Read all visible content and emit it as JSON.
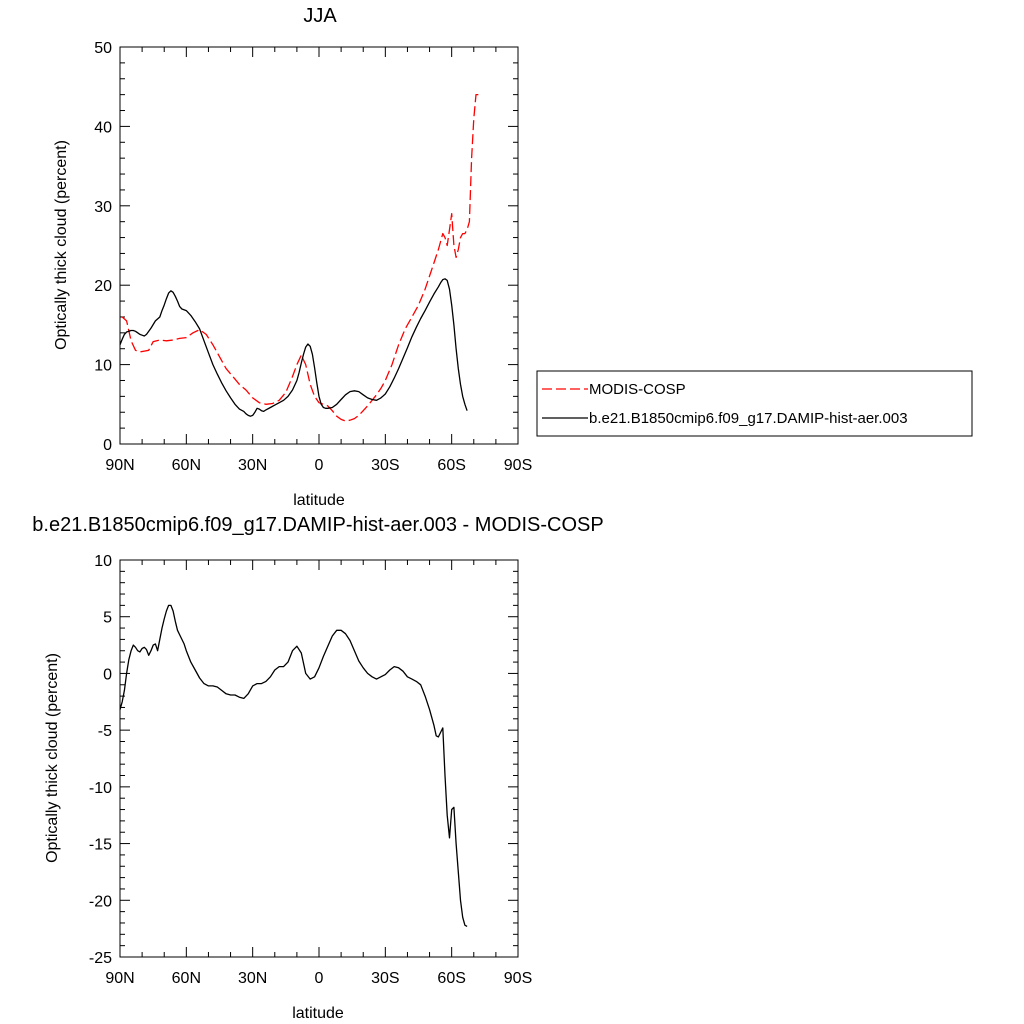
{
  "chart_data": [
    {
      "type": "line",
      "title": "JJA",
      "xlabel": "latitude",
      "ylabel": "Optically thick cloud (percent)",
      "xlim": [
        -90,
        90
      ],
      "ylim": [
        0,
        50
      ],
      "x_ticks": [
        -90,
        -60,
        -30,
        0,
        30,
        60,
        90
      ],
      "x_tick_labels": [
        "90N",
        "60N",
        "30N",
        "0",
        "30S",
        "60S",
        "90S"
      ],
      "y_ticks": [
        0,
        10,
        20,
        30,
        40,
        50
      ],
      "y_tick_labels": [
        "0",
        "10",
        "20",
        "30",
        "40",
        "50"
      ],
      "grid": false,
      "legend_position": "right",
      "series": [
        {
          "name": "MODIS-COSP",
          "color": "#ff0000",
          "dash": "dashed",
          "x": [
            -89,
            -87,
            -85,
            -83,
            -81,
            -79,
            -77,
            -75,
            -72,
            -69,
            -66,
            -63,
            -60,
            -57,
            -54,
            -51,
            -48,
            -45,
            -42,
            -39,
            -36,
            -33,
            -30,
            -27,
            -24,
            -21,
            -18,
            -15,
            -12,
            -10,
            -8,
            -6,
            -4,
            -2,
            0,
            2,
            4,
            6,
            8,
            10,
            12,
            14,
            16,
            18,
            20,
            22,
            24,
            26,
            28,
            30,
            33,
            36,
            39,
            42,
            45,
            48,
            51,
            54,
            55,
            56,
            57,
            58,
            59,
            60,
            61,
            62,
            63,
            64,
            65,
            66,
            67,
            68,
            69,
            70,
            71,
            72,
            73
          ],
          "y": [
            16,
            15.5,
            13,
            11.8,
            11.6,
            11.7,
            11.8,
            12.9,
            13.1,
            13.0,
            13.1,
            13.3,
            13.4,
            14.0,
            14.4,
            13.8,
            12.5,
            11.0,
            9.5,
            8.5,
            7.5,
            6.8,
            5.8,
            5.2,
            5.0,
            5.1,
            5.5,
            6.5,
            8.5,
            10.0,
            11.2,
            10.0,
            7.5,
            6.0,
            5.2,
            5.0,
            4.8,
            4.2,
            3.5,
            3.1,
            2.9,
            3.0,
            3.2,
            3.6,
            4.2,
            4.8,
            5.5,
            6.2,
            7.0,
            8.0,
            10.0,
            12.5,
            14.5,
            16.0,
            17.5,
            19.5,
            22.0,
            24.5,
            25.5,
            26.5,
            26.0,
            25.0,
            27.0,
            29.0,
            25.0,
            23.5,
            24.5,
            26.0,
            26.5,
            26.5,
            27.0,
            28.0,
            36.0,
            41.0,
            44.0,
            44.0,
            44.0
          ]
        },
        {
          "name": "b.e21.B1850cmip6.f09_g17.DAMIP-hist-aer.003",
          "color": "#000000",
          "dash": "solid",
          "x": [
            -90,
            -89,
            -88,
            -87,
            -86,
            -85,
            -84,
            -83,
            -82,
            -81,
            -80,
            -79,
            -78,
            -76,
            -74,
            -72,
            -71,
            -70,
            -69,
            -68,
            -67,
            -66,
            -65,
            -64,
            -63,
            -62,
            -60,
            -58,
            -56,
            -54,
            -52,
            -50,
            -48,
            -46,
            -44,
            -42,
            -40,
            -38,
            -36,
            -34,
            -33,
            -32,
            -31,
            -30,
            -29,
            -28,
            -27,
            -26,
            -25,
            -24,
            -22,
            -20,
            -18,
            -16,
            -14,
            -12,
            -10,
            -9,
            -8,
            -7,
            -6,
            -5,
            -4,
            -3,
            -2,
            -1,
            0,
            1,
            2,
            3,
            4,
            6,
            8,
            10,
            12,
            14,
            16,
            18,
            20,
            22,
            24,
            26,
            28,
            30,
            32,
            34,
            36,
            38,
            40,
            42,
            44,
            46,
            48,
            50,
            52,
            54,
            55,
            56,
            57,
            58,
            59,
            60,
            61,
            62,
            63,
            64,
            65,
            66,
            67
          ],
          "y": [
            12.5,
            13.2,
            13.8,
            14.1,
            14.2,
            14.3,
            14.3,
            14.2,
            14.0,
            13.8,
            13.7,
            13.6,
            13.8,
            14.6,
            15.5,
            16.0,
            16.8,
            17.5,
            18.3,
            19.0,
            19.3,
            19.1,
            18.6,
            18.0,
            17.3,
            17.0,
            16.8,
            16.2,
            15.4,
            14.5,
            13.0,
            11.5,
            10.0,
            8.8,
            7.7,
            6.7,
            5.8,
            5.0,
            4.4,
            4.1,
            3.8,
            3.6,
            3.5,
            3.6,
            4.0,
            4.5,
            4.4,
            4.2,
            4.1,
            4.3,
            4.6,
            4.9,
            5.2,
            5.5,
            6.0,
            6.8,
            8.0,
            9.0,
            10.2,
            11.3,
            12.2,
            12.6,
            12.3,
            11.3,
            9.6,
            7.7,
            6.0,
            5.0,
            4.6,
            4.5,
            4.5,
            4.6,
            5.0,
            5.6,
            6.2,
            6.6,
            6.7,
            6.6,
            6.2,
            5.8,
            5.6,
            5.5,
            5.8,
            6.3,
            7.2,
            8.3,
            9.5,
            10.8,
            12.1,
            13.5,
            14.7,
            15.8,
            16.8,
            17.9,
            18.9,
            19.8,
            20.3,
            20.7,
            20.8,
            20.6,
            19.5,
            17.5,
            15.0,
            12.0,
            9.5,
            7.5,
            6.0,
            5.0,
            4.2
          ]
        }
      ]
    },
    {
      "type": "line",
      "title": "b.e21.B1850cmip6.f09_g17.DAMIP-hist-aer.003 - MODIS-COSP",
      "xlabel": "latitude",
      "ylabel": "Optically thick cloud (percent)",
      "xlim": [
        -90,
        90
      ],
      "ylim": [
        -25,
        10
      ],
      "x_ticks": [
        -90,
        -60,
        -30,
        0,
        30,
        60,
        90
      ],
      "x_tick_labels": [
        "90N",
        "60N",
        "30N",
        "0",
        "30S",
        "60S",
        "90S"
      ],
      "y_ticks": [
        -25,
        -20,
        -15,
        -10,
        -5,
        0,
        5,
        10
      ],
      "y_tick_labels": [
        "-25",
        "-20",
        "-15",
        "-10",
        "-5",
        "0",
        "5",
        "10"
      ],
      "grid": false,
      "series": [
        {
          "color": "#000000",
          "dash": "solid",
          "x": [
            -90,
            -89,
            -88,
            -87,
            -86,
            -85,
            -84,
            -83,
            -82,
            -81,
            -80,
            -79,
            -78,
            -77,
            -76,
            -75,
            -74,
            -73,
            -72,
            -71,
            -70,
            -69,
            -68,
            -67,
            -66,
            -65,
            -64,
            -63,
            -62,
            -61,
            -60,
            -58,
            -56,
            -54,
            -52,
            -50,
            -48,
            -46,
            -44,
            -42,
            -40,
            -38,
            -36,
            -34,
            -32,
            -30,
            -28,
            -26,
            -24,
            -22,
            -20,
            -18,
            -16,
            -14,
            -12,
            -10,
            -8,
            -6,
            -4,
            -2,
            0,
            2,
            4,
            6,
            8,
            10,
            12,
            14,
            16,
            18,
            20,
            22,
            24,
            26,
            28,
            30,
            32,
            34,
            36,
            38,
            40,
            42,
            44,
            46,
            48,
            50,
            52,
            53,
            54,
            55,
            56,
            57,
            58,
            59,
            60,
            61,
            62,
            63,
            64,
            65,
            66,
            67
          ],
          "y": [
            -3.2,
            -2.5,
            -1.5,
            0.0,
            1.2,
            2.0,
            2.5,
            2.3,
            2.0,
            1.9,
            2.2,
            2.3,
            2.1,
            1.6,
            2.0,
            2.5,
            2.6,
            2.0,
            3.0,
            4.0,
            4.8,
            5.5,
            6.0,
            6.0,
            5.5,
            4.6,
            3.8,
            3.4,
            3.0,
            2.6,
            2.0,
            1.0,
            0.3,
            -0.4,
            -0.9,
            -1.1,
            -1.1,
            -1.2,
            -1.5,
            -1.8,
            -1.9,
            -1.9,
            -2.1,
            -2.2,
            -1.8,
            -1.1,
            -0.9,
            -0.9,
            -0.7,
            -0.3,
            0.3,
            0.6,
            0.6,
            1.0,
            2.0,
            2.4,
            1.8,
            0.0,
            -0.5,
            -0.3,
            0.5,
            1.5,
            2.4,
            3.3,
            3.8,
            3.8,
            3.5,
            2.9,
            2.0,
            1.1,
            0.5,
            0.0,
            -0.3,
            -0.5,
            -0.3,
            -0.1,
            0.3,
            0.6,
            0.5,
            0.2,
            -0.3,
            -0.5,
            -0.7,
            -1.0,
            -2.0,
            -3.2,
            -4.6,
            -5.5,
            -5.6,
            -5.2,
            -4.8,
            -9.0,
            -12.5,
            -14.5,
            -12.0,
            -11.8,
            -15.0,
            -17.5,
            -20.0,
            -21.5,
            -22.2,
            -22.3
          ]
        }
      ]
    }
  ]
}
